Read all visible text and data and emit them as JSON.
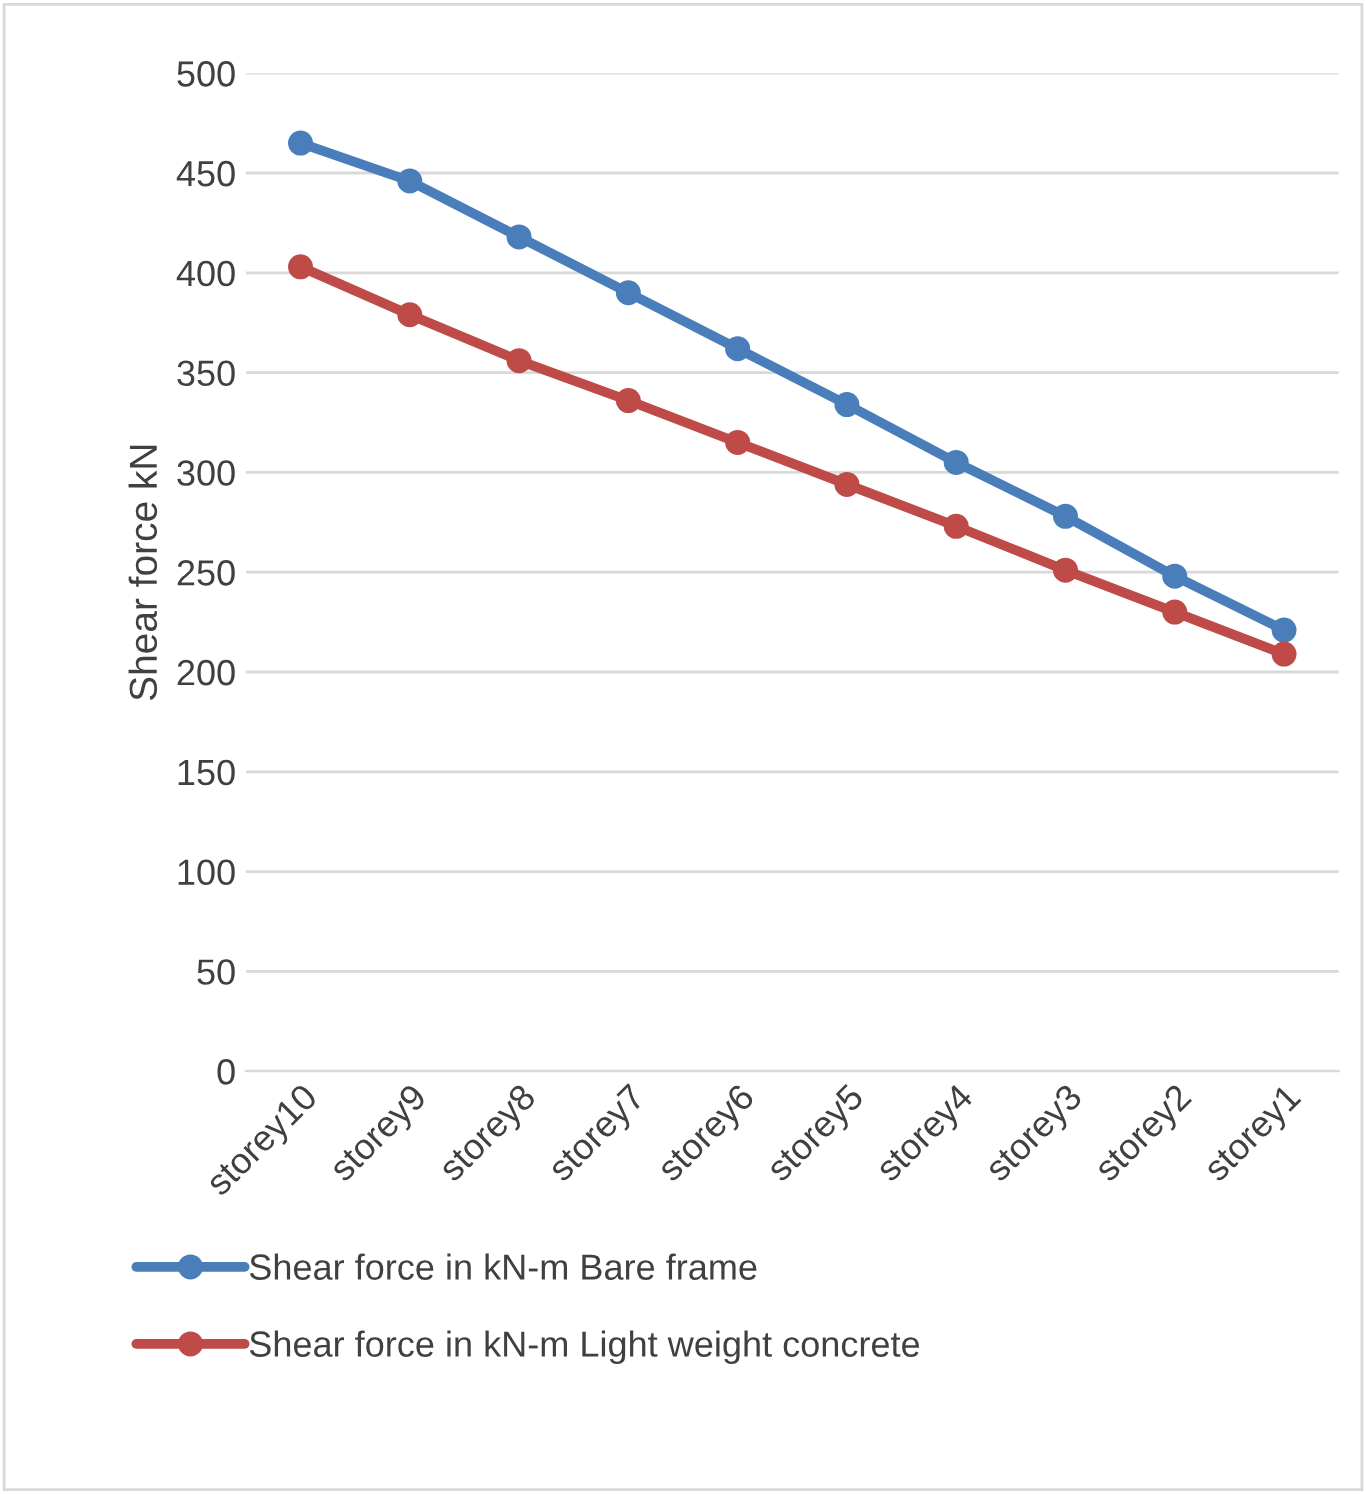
{
  "chart_data": {
    "type": "line",
    "ylabel": "Shear force kN",
    "categories": [
      "storey10",
      "storey9",
      "storey8",
      "storey7",
      "storey6",
      "storey5",
      "storey4",
      "storey3",
      "storey2",
      "storey1"
    ],
    "series": [
      {
        "name": "Shear force in kN-m Bare frame",
        "color": "#4a7ebb",
        "values": [
          465,
          446,
          418,
          390,
          362,
          334,
          305,
          278,
          248,
          221
        ]
      },
      {
        "name": "Shear force in kN-m Light weight concrete",
        "color": "#be4b48",
        "values": [
          403,
          379,
          356,
          336,
          315,
          294,
          273,
          251,
          230,
          209
        ]
      }
    ],
    "ylim": [
      0,
      500
    ],
    "yticks": [
      0,
      50,
      100,
      150,
      200,
      250,
      300,
      350,
      400,
      450,
      500
    ],
    "grid": "y",
    "legend": "bottom",
    "marker": "circle",
    "line_style": "solid"
  }
}
